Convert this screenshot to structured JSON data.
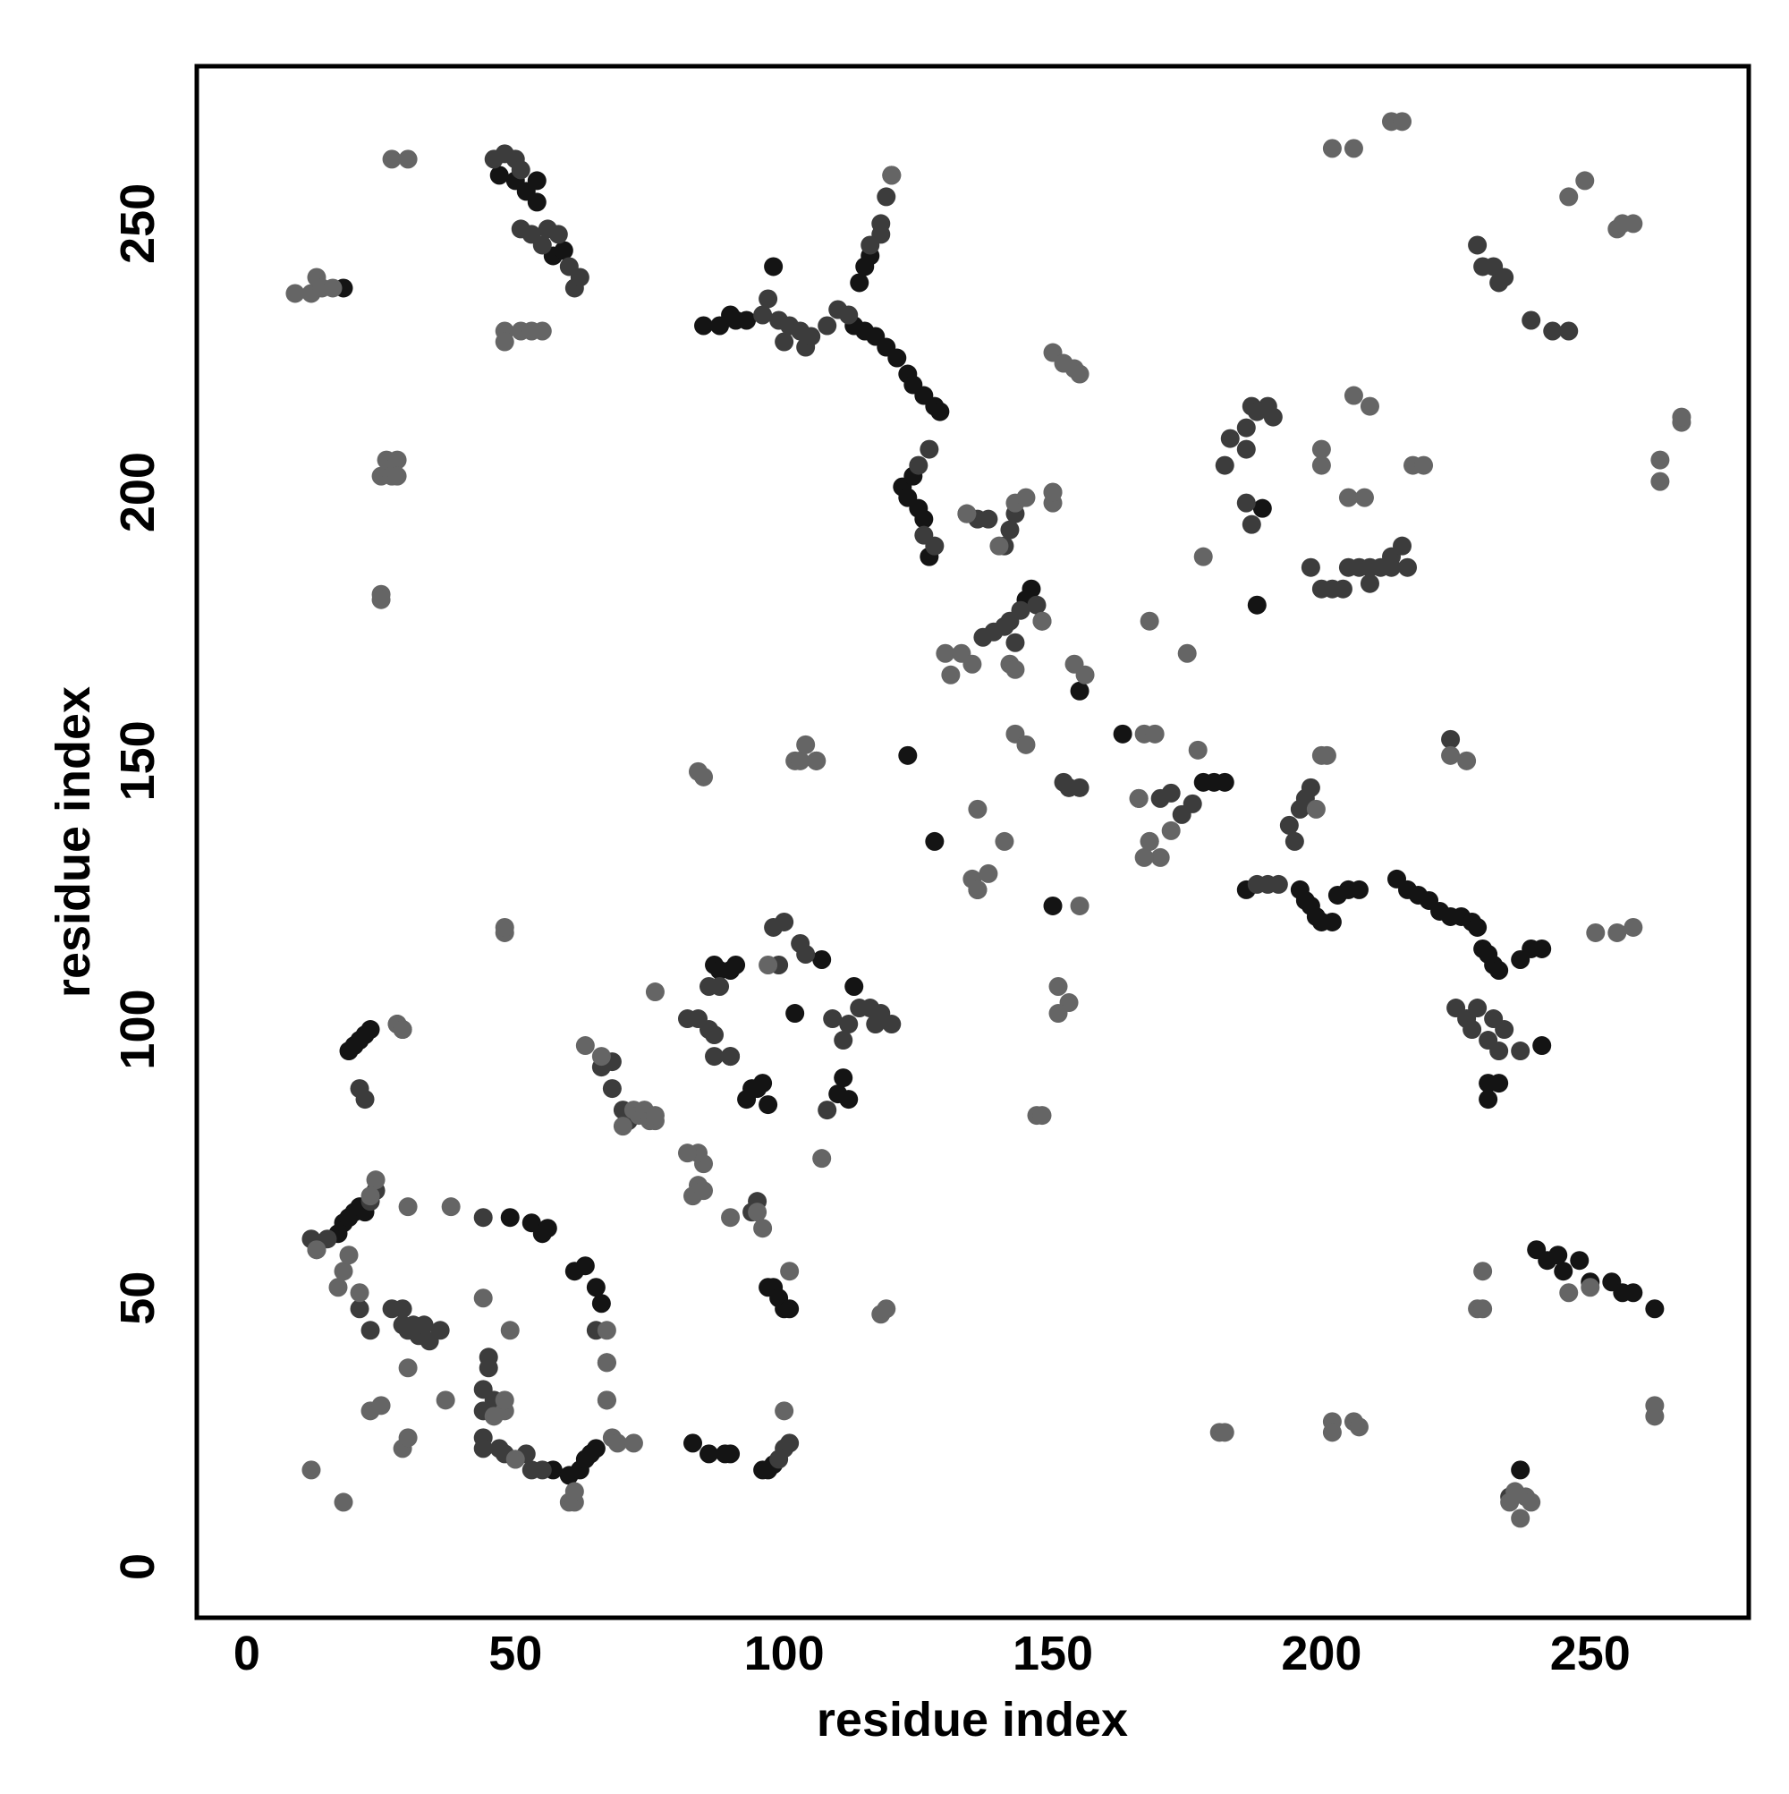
{
  "chart_data": {
    "type": "scatter",
    "x_label": "residue index",
    "y_label": "residue index",
    "xlim": [
      -9.3,
      279.5
    ],
    "ylim": [
      -9.5,
      279.3
    ],
    "xticks": [
      0,
      50,
      100,
      150,
      200,
      250
    ],
    "yticks": [
      0,
      50,
      100,
      150,
      200,
      250
    ],
    "grid": false,
    "series": [
      {
        "color": "#141414",
        "x": [
          18,
          47,
          50,
          52,
          54,
          54,
          57,
          59,
          85,
          88,
          90,
          91,
          93,
          98,
          113,
          115,
          117,
          119,
          121,
          123,
          124,
          126,
          128,
          129,
          114,
          115,
          116,
          122,
          123,
          124,
          125,
          126,
          127,
          146,
          145,
          163,
          178,
          180,
          182,
          188,
          189,
          155,
          150,
          123,
          128,
          136,
          186,
          196,
          197,
          198,
          199,
          200,
          202,
          203,
          205,
          207,
          214,
          216,
          218,
          220,
          222,
          224,
          226,
          228,
          229,
          230,
          231,
          232,
          233,
          237,
          239,
          241,
          231,
          233,
          231,
          240,
          242,
          244,
          245,
          248,
          250,
          254,
          256,
          258,
          262,
          241,
          17,
          18,
          19,
          20,
          21,
          22,
          19,
          20,
          21,
          22,
          23,
          49,
          53,
          55,
          56,
          57,
          60,
          62,
          63,
          64,
          65,
          61,
          63,
          65,
          66,
          87,
          88,
          90,
          91,
          90,
          93,
          94,
          95,
          96,
          97,
          110,
          111,
          112,
          97,
          98,
          99,
          100,
          101,
          83,
          86,
          89,
          90,
          96,
          97,
          98,
          237,
          102,
          107,
          113
        ],
        "values": [
          238,
          259,
          258,
          256,
          254,
          258,
          244,
          245,
          231,
          231,
          233,
          232,
          232,
          242,
          231,
          230,
          229,
          227,
          225,
          222,
          220,
          218,
          216,
          215,
          239,
          242,
          244,
          201,
          199,
          203,
          197,
          195,
          188,
          182,
          180,
          155,
          146,
          146,
          146,
          179,
          197,
          163,
          123,
          151,
          135,
          126,
          126,
          126,
          124,
          123,
          121,
          120,
          120,
          125,
          126,
          126,
          128,
          126,
          125,
          124,
          122,
          121,
          121,
          120,
          119,
          115,
          114,
          112,
          111,
          113,
          115,
          115,
          90,
          90,
          87,
          59,
          57,
          58,
          55,
          57,
          53,
          53,
          51,
          51,
          48,
          97,
          62,
          64,
          65,
          66,
          67,
          66,
          96,
          97,
          98,
          99,
          100,
          65,
          64,
          62,
          63,
          18,
          17,
          18,
          20,
          21,
          22,
          55,
          56,
          52,
          49,
          112,
          111,
          111,
          112,
          95,
          87,
          89,
          89,
          90,
          86,
          88,
          91,
          87,
          52,
          52,
          50,
          48,
          48,
          23,
          21,
          21,
          21,
          18,
          18,
          19,
          18,
          103,
          113,
          108
        ]
      },
      {
        "color": "#3c3c3c",
        "x": [
          46,
          48,
          50,
          51,
          51,
          53,
          55,
          56,
          58,
          60,
          61,
          62,
          96,
          97,
          99,
          100,
          101,
          103,
          104,
          105,
          108,
          110,
          112,
          118,
          118,
          119,
          120,
          116,
          127,
          125,
          126,
          128,
          134,
          136,
          138,
          141,
          142,
          143,
          137,
          139,
          141,
          142,
          144,
          147,
          148,
          143,
          152,
          153,
          155,
          170,
          172,
          174,
          176,
          166,
          168,
          182,
          183,
          186,
          186,
          187,
          188,
          190,
          191,
          186,
          187,
          198,
          200,
          202,
          204,
          205,
          207,
          209,
          211,
          213,
          215,
          216,
          213,
          209,
          188,
          190,
          192,
          194,
          195,
          196,
          197,
          198,
          229,
          230,
          232,
          233,
          234,
          239,
          243,
          246,
          225,
          227,
          228,
          229,
          231,
          232,
          233,
          234,
          237,
          224,
          235,
          12,
          13,
          15,
          23,
          24,
          21,
          22,
          21,
          23,
          27,
          29,
          29,
          30,
          31,
          32,
          33,
          34,
          36,
          44,
          45,
          45,
          44,
          46,
          44,
          44,
          44,
          47,
          48,
          50,
          52,
          53,
          55,
          66,
          68,
          68,
          70,
          71,
          82,
          84,
          86,
          87,
          86,
          88,
          87,
          90,
          94,
          95,
          99,
          100,
          101,
          103,
          104,
          106,
          108,
          109,
          111,
          112,
          114,
          116,
          117,
          118,
          120,
          98,
          99,
          100,
          65,
          67,
          67,
          28,
          29
        ],
        "values": [
          262,
          263,
          262,
          260,
          249,
          248,
          246,
          249,
          248,
          242,
          238,
          240,
          233,
          236,
          232,
          228,
          231,
          230,
          227,
          229,
          231,
          234,
          233,
          248,
          250,
          255,
          259,
          246,
          208,
          205,
          192,
          190,
          196,
          195,
          195,
          190,
          193,
          196,
          173,
          174,
          175,
          176,
          178,
          179,
          176,
          172,
          146,
          145,
          145,
          143,
          144,
          140,
          142,
          143,
          135,
          205,
          210,
          208,
          212,
          216,
          215,
          216,
          214,
          198,
          194,
          186,
          182,
          182,
          182,
          186,
          186,
          186,
          186,
          188,
          190,
          186,
          186,
          183,
          127,
          127,
          127,
          138,
          135,
          141,
          143,
          145,
          246,
          242,
          242,
          239,
          240,
          232,
          230,
          230,
          104,
          102,
          100,
          104,
          98,
          102,
          96,
          100,
          96,
          154,
          13,
          61,
          59,
          61,
          68,
          70,
          89,
          87,
          48,
          44,
          48,
          48,
          45,
          44,
          45,
          43,
          45,
          42,
          44,
          65,
          39,
          37,
          33,
          31,
          29,
          24,
          22,
          22,
          21,
          20,
          21,
          18,
          18,
          93,
          94,
          89,
          85,
          83,
          102,
          102,
          100,
          99,
          108,
          108,
          95,
          95,
          66,
          68,
          20,
          22,
          23,
          116,
          114,
          150,
          85,
          102,
          98,
          101,
          104,
          104,
          101,
          103,
          101,
          119,
          112,
          120,
          44,
          38,
          31,
          101,
          100
        ]
      },
      {
        "color": "#656565",
        "x": [
          9,
          12,
          13,
          14,
          16,
          27,
          30,
          48,
          48,
          51,
          53,
          55,
          25,
          26,
          27,
          28,
          28,
          25,
          25,
          120,
          134,
          140,
          143,
          145,
          150,
          150,
          150,
          152,
          154,
          155,
          130,
          131,
          133,
          135,
          135,
          136,
          142,
          143,
          148,
          154,
          156,
          136,
          138,
          141,
          143,
          145,
          151,
          153,
          151,
          155,
          167,
          169,
          166,
          168,
          170,
          167,
          172,
          177,
          175,
          168,
          178,
          200,
          200,
          205,
          208,
          206,
          209,
          217,
          219,
          202,
          206,
          213,
          215,
          246,
          249,
          255,
          256,
          258,
          263,
          263,
          267,
          267,
          224,
          227,
          199,
          200,
          201,
          147,
          148,
          237,
          250,
          246,
          230,
          229,
          230,
          181,
          182,
          202,
          202,
          206,
          207,
          235,
          236,
          238,
          239,
          262,
          262,
          18,
          13,
          19,
          17,
          21,
          24,
          23,
          28,
          29,
          30,
          30,
          38,
          12,
          18,
          23,
          25,
          29,
          30,
          37,
          44,
          48,
          48,
          46,
          49,
          50,
          60,
          61,
          61,
          67,
          67,
          67,
          68,
          69,
          72,
          63,
          66,
          72,
          73,
          74,
          75,
          76,
          76,
          76,
          85,
          84,
          84,
          83,
          85,
          90,
          95,
          96,
          107,
          118,
          119,
          84,
          85,
          102,
          103,
          104,
          106,
          48,
          48,
          97,
          150,
          251,
          255,
          258,
          101,
          100,
          70,
          82
        ],
        "values": [
          237,
          237,
          240,
          238,
          238,
          262,
          262,
          230,
          228,
          230,
          230,
          230,
          203,
          206,
          203,
          206,
          203,
          181,
          180,
          259,
          196,
          190,
          198,
          199,
          200,
          198,
          226,
          224,
          223,
          222,
          170,
          166,
          170,
          168,
          128,
          126,
          168,
          167,
          176,
          168,
          166,
          141,
          129,
          135,
          155,
          153,
          108,
          105,
          103,
          123,
          155,
          155,
          143,
          135,
          132,
          132,
          137,
          152,
          170,
          176,
          188,
          208,
          205,
          199,
          199,
          218,
          216,
          205,
          205,
          264,
          264,
          269,
          269,
          255,
          258,
          249,
          250,
          250,
          206,
          202,
          213,
          214,
          151,
          150,
          141,
          151,
          151,
          84,
          84,
          9,
          52,
          51,
          55,
          48,
          48,
          25,
          25,
          27,
          25,
          27,
          26,
          12,
          14,
          13,
          12,
          30,
          28,
          55,
          59,
          58,
          52,
          51,
          72,
          69,
          101,
          100,
          67,
          37,
          67,
          18,
          12,
          29,
          30,
          22,
          24,
          31,
          50,
          29,
          31,
          28,
          44,
          20,
          12,
          12,
          14,
          44,
          38,
          31,
          24,
          23,
          23,
          97,
          95,
          85,
          84,
          85,
          83,
          83,
          84,
          107,
          75,
          77,
          71,
          69,
          70,
          65,
          66,
          63,
          76,
          47,
          48,
          148,
          147,
          150,
          150,
          153,
          150,
          118,
          119,
          112,
          200,
          118,
          118,
          119,
          55,
          29,
          82,
          77
        ]
      }
    ]
  }
}
